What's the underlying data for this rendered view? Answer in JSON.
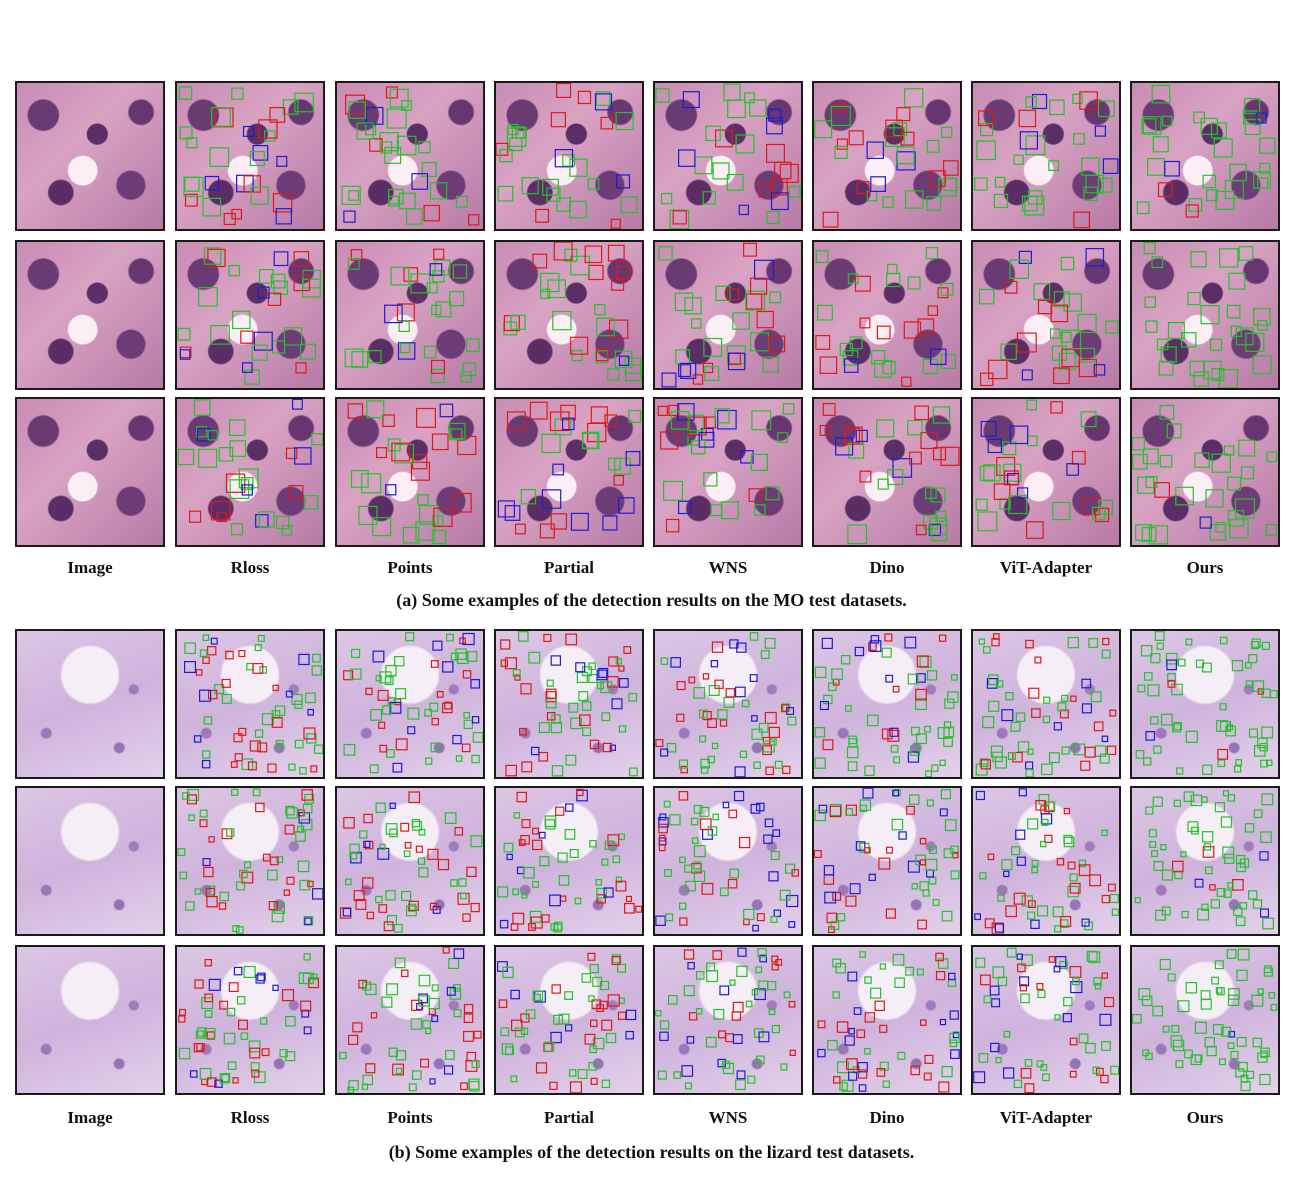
{
  "figure": {
    "columns": [
      "Image",
      "Rloss",
      "Points",
      "Partial",
      "WNS",
      "Dino",
      "ViT-Adapter",
      "Ours"
    ],
    "panel_a": {
      "caption": "(a) Some examples of the detection results on the MO test datasets.",
      "rows": 3
    },
    "panel_b": {
      "caption": "(b) Some examples of the detection results on the lizard test datasets.",
      "rows": 3
    },
    "box_colors": {
      "correct": "#22c32a",
      "false_positive": "#e01818",
      "missed": "#1c1cd6"
    }
  }
}
